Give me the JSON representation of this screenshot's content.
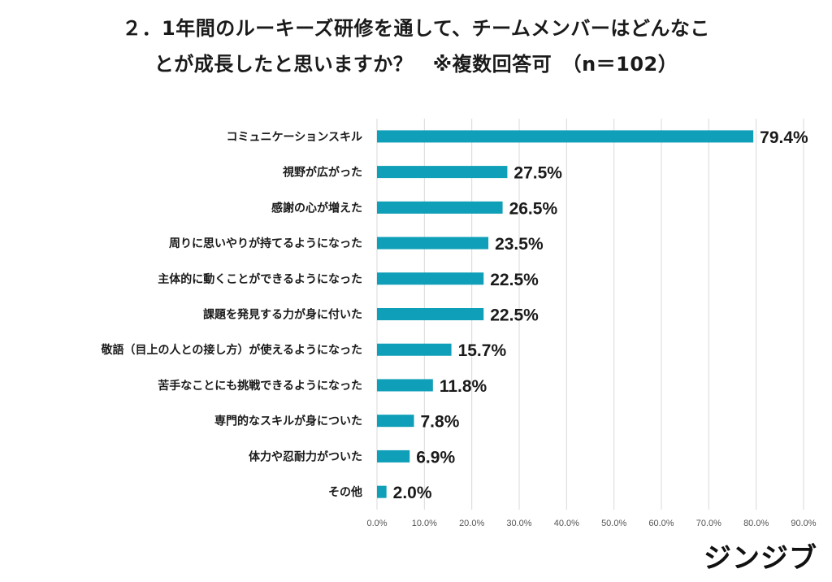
{
  "title": {
    "line1": "２．1年間のルーキーズ研修を通して、チームメンバーはどんなこ",
    "line2": "とが成長したと思いますか？　※複数回答可　（n＝102）"
  },
  "logo": "ジンジブ",
  "colors": {
    "bar": "#0f9fb8",
    "grid": "#d9d9d9"
  },
  "chart_data": {
    "type": "bar",
    "orientation": "horizontal",
    "categories": [
      "コミュニケーションスキル",
      "視野が広がった",
      "感謝の心が増えた",
      "周りに思いやりが持てるようになった",
      "主体的に動くことができるようになった",
      "課題を発見する力が身に付いた",
      "敬語（目上の人との接し方）が使えるようになった",
      "苦手なことにも挑戦できるようになった",
      "専門的なスキルが身についた",
      "体力や忍耐力がついた",
      "その他"
    ],
    "values": [
      79.4,
      27.5,
      26.5,
      23.5,
      22.5,
      22.5,
      15.7,
      11.8,
      7.8,
      6.9,
      2.0
    ],
    "value_labels": [
      "79.4%",
      "27.5%",
      "26.5%",
      "23.5%",
      "22.5%",
      "22.5%",
      "15.7%",
      "11.8%",
      "7.8%",
      "6.9%",
      "2.0%"
    ],
    "xlim": [
      0,
      90
    ],
    "x_ticks": [
      "0.0%",
      "10.0%",
      "20.0%",
      "30.0%",
      "40.0%",
      "50.0%",
      "60.0%",
      "70.0%",
      "80.0%",
      "90.0%"
    ],
    "grid": true
  }
}
